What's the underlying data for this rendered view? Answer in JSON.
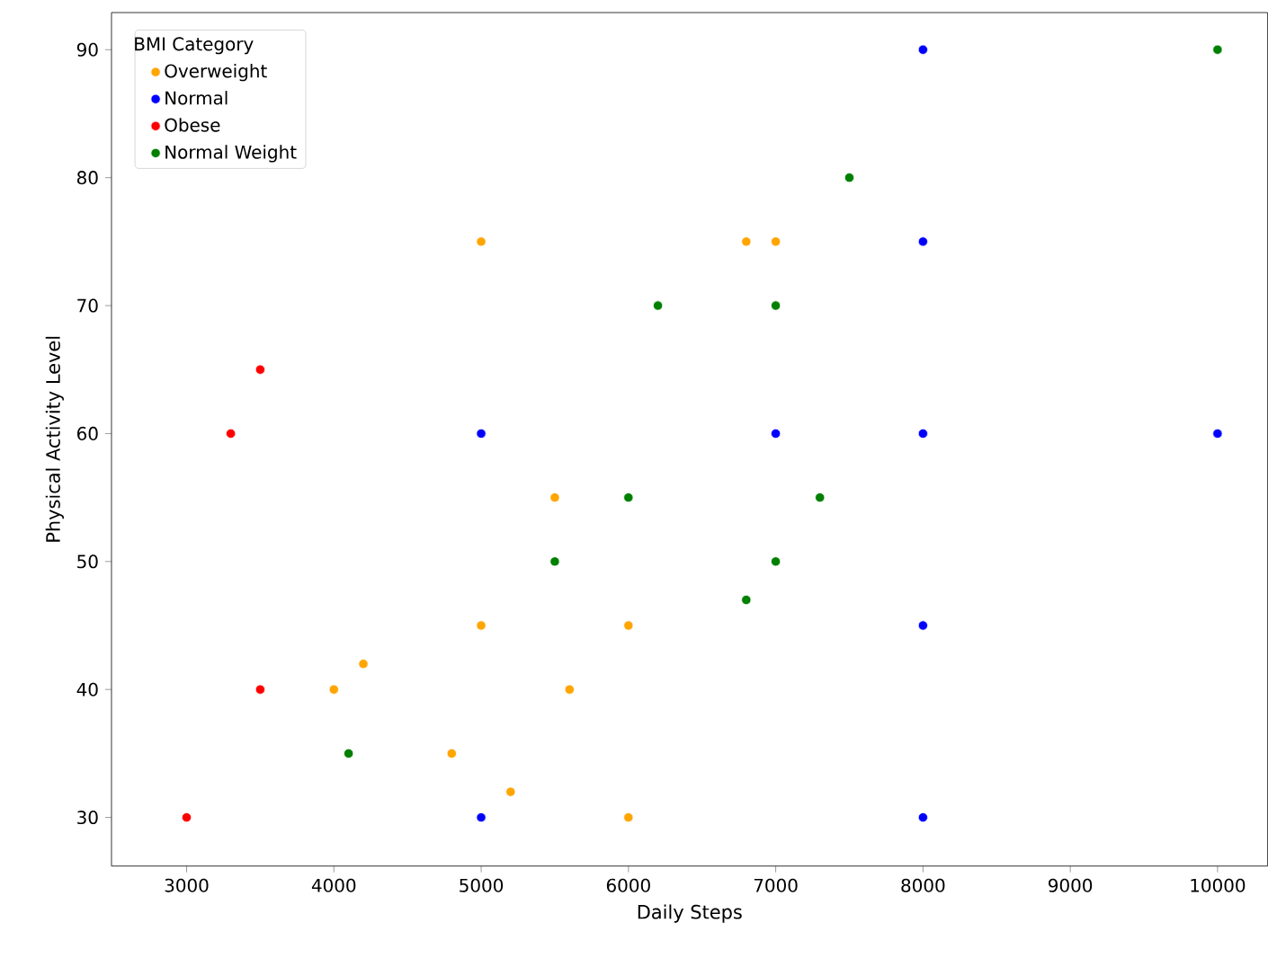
{
  "chart_data": {
    "type": "scatter",
    "xlabel": "Daily Steps",
    "ylabel": "Physical Activity Level",
    "legend_title": "BMI Category",
    "legend": "top left",
    "marker": "circle",
    "grid": false,
    "xlim": [
      2490,
      10340
    ],
    "ylim": [
      26.2,
      92.9
    ],
    "xticks": [
      3000,
      4000,
      5000,
      6000,
      7000,
      8000,
      9000,
      10000
    ],
    "yticks": [
      30,
      40,
      50,
      60,
      70,
      80,
      90
    ],
    "series": [
      {
        "name": "Overweight",
        "color": "#ffa500",
        "x": [
          6800,
          7000,
          5000,
          5500,
          5000,
          6000,
          4000,
          4200,
          5600,
          4800,
          5200,
          6000
        ],
        "values": [
          75,
          75,
          75,
          55,
          45,
          45,
          40,
          42,
          40,
          35,
          32,
          30
        ]
      },
      {
        "name": "Normal",
        "color": "#0000ff",
        "x": [
          8000,
          8000,
          5000,
          7000,
          8000,
          10000,
          8000,
          5000,
          8000
        ],
        "values": [
          90,
          75,
          60,
          60,
          60,
          60,
          45,
          30,
          30
        ]
      },
      {
        "name": "Obese",
        "color": "#ff0000",
        "x": [
          3500,
          3300,
          3500,
          3000
        ],
        "values": [
          65,
          60,
          40,
          30
        ]
      },
      {
        "name": "Normal Weight",
        "color": "#008000",
        "x": [
          10000,
          7500,
          6200,
          7000,
          6000,
          7300,
          5500,
          7000,
          6800,
          4100
        ],
        "values": [
          90,
          80,
          70,
          70,
          55,
          55,
          50,
          50,
          47,
          35
        ]
      }
    ]
  }
}
